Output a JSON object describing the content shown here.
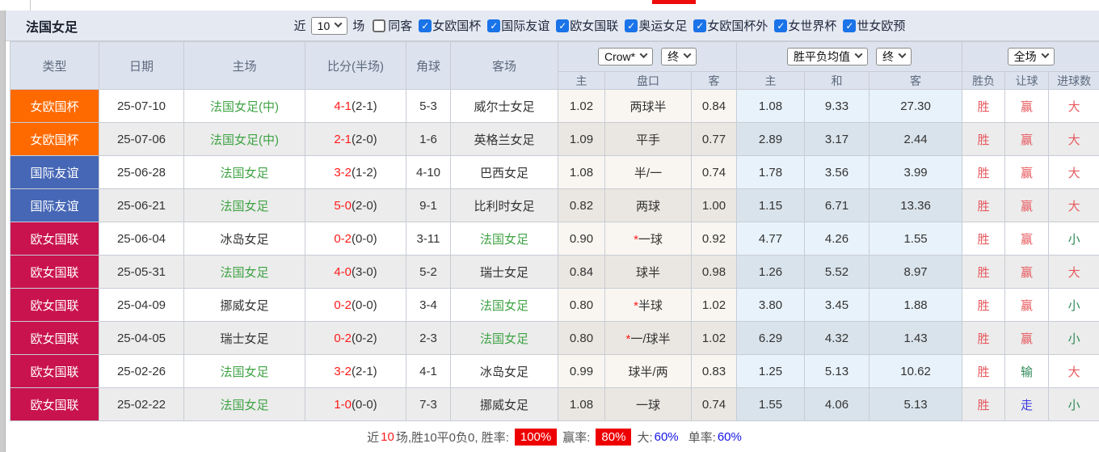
{
  "window": {
    "team_title": "法国女足"
  },
  "filters": {
    "recent_prefix": "近",
    "recent_value": "10",
    "recent_suffix": "场",
    "same_guest": {
      "label": "同客",
      "checked": false
    },
    "competitions": [
      {
        "label": "女欧国杯",
        "checked": true
      },
      {
        "label": "国际友谊",
        "checked": true
      },
      {
        "label": "欧女国联",
        "checked": true
      },
      {
        "label": "奥运女足",
        "checked": true
      },
      {
        "label": "女欧国杯外",
        "checked": true
      },
      {
        "label": "女世界杯",
        "checked": true
      },
      {
        "label": "世女欧预",
        "checked": true
      }
    ]
  },
  "table": {
    "static_headers": [
      "类型",
      "日期",
      "主场",
      "比分(半场)",
      "角球",
      "客场"
    ],
    "dropdowns": {
      "odds_company": "Crow*",
      "odds_stage_1": "终",
      "avg_type": "胜平负均值",
      "odds_stage_2": "终",
      "scope": "全场"
    },
    "sub_headers": [
      "主",
      "盘口",
      "客",
      "主",
      "和",
      "客",
      "胜负",
      "让球",
      "进球数"
    ],
    "rows": [
      {
        "type": "女欧国杯",
        "type_color": "orange",
        "date": "25-07-10",
        "home": "法国女足(中)",
        "home_color": "green",
        "score": "4-1",
        "half": "(2-1)",
        "corners": "5-3",
        "away": "威尔士女足",
        "away_color": "black",
        "odds_home": "1.02",
        "handicap": "两球半",
        "handicap_star": false,
        "odds_away": "0.84",
        "avg_home": "1.08",
        "avg_draw": "9.33",
        "avg_away": "27.30",
        "result": "胜",
        "result_color": "red",
        "handicap_result": "赢",
        "handicap_result_color": "red",
        "goals": "大",
        "goals_color": "red"
      },
      {
        "type": "女欧国杯",
        "type_color": "orange",
        "date": "25-07-06",
        "home": "法国女足(中)",
        "home_color": "green",
        "score": "2-1",
        "half": "(2-0)",
        "corners": "1-6",
        "away": "英格兰女足",
        "away_color": "black",
        "odds_home": "1.09",
        "handicap": "平手",
        "handicap_star": false,
        "odds_away": "0.77",
        "avg_home": "2.89",
        "avg_draw": "3.17",
        "avg_away": "2.44",
        "result": "胜",
        "result_color": "red",
        "handicap_result": "赢",
        "handicap_result_color": "red",
        "goals": "大",
        "goals_color": "red"
      },
      {
        "type": "国际友谊",
        "type_color": "blue",
        "date": "25-06-28",
        "home": "法国女足",
        "home_color": "green",
        "score": "3-2",
        "half": "(1-2)",
        "corners": "4-10",
        "away": "巴西女足",
        "away_color": "black",
        "odds_home": "1.08",
        "handicap": "半/一",
        "handicap_star": false,
        "odds_away": "0.74",
        "avg_home": "1.78",
        "avg_draw": "3.56",
        "avg_away": "3.99",
        "result": "胜",
        "result_color": "red",
        "handicap_result": "赢",
        "handicap_result_color": "red",
        "goals": "大",
        "goals_color": "red"
      },
      {
        "type": "国际友谊",
        "type_color": "blue",
        "date": "25-06-21",
        "home": "法国女足",
        "home_color": "green",
        "score": "5-0",
        "half": "(2-0)",
        "corners": "9-1",
        "away": "比利时女足",
        "away_color": "black",
        "odds_home": "0.82",
        "handicap": "两球",
        "handicap_star": false,
        "odds_away": "1.00",
        "avg_home": "1.15",
        "avg_draw": "6.71",
        "avg_away": "13.36",
        "result": "胜",
        "result_color": "red",
        "handicap_result": "赢",
        "handicap_result_color": "red",
        "goals": "大",
        "goals_color": "red"
      },
      {
        "type": "欧女国联",
        "type_color": "crimson",
        "date": "25-06-04",
        "home": "冰岛女足",
        "home_color": "black",
        "score": "0-2",
        "half": "(0-0)",
        "corners": "3-11",
        "away": "法国女足",
        "away_color": "green",
        "odds_home": "0.90",
        "handicap": "一球",
        "handicap_star": true,
        "odds_away": "0.92",
        "avg_home": "4.77",
        "avg_draw": "4.26",
        "avg_away": "1.55",
        "result": "胜",
        "result_color": "red",
        "handicap_result": "赢",
        "handicap_result_color": "red",
        "goals": "小",
        "goals_color": "green"
      },
      {
        "type": "欧女国联",
        "type_color": "crimson",
        "date": "25-05-31",
        "home": "法国女足",
        "home_color": "green",
        "score": "4-0",
        "half": "(3-0)",
        "corners": "5-2",
        "away": "瑞士女足",
        "away_color": "black",
        "odds_home": "0.84",
        "handicap": "球半",
        "handicap_star": false,
        "odds_away": "0.98",
        "avg_home": "1.26",
        "avg_draw": "5.52",
        "avg_away": "8.97",
        "result": "胜",
        "result_color": "red",
        "handicap_result": "赢",
        "handicap_result_color": "red",
        "goals": "大",
        "goals_color": "red"
      },
      {
        "type": "欧女国联",
        "type_color": "crimson",
        "date": "25-04-09",
        "home": "挪威女足",
        "home_color": "black",
        "score": "0-2",
        "half": "(0-0)",
        "corners": "3-4",
        "away": "法国女足",
        "away_color": "green",
        "odds_home": "0.80",
        "handicap": "半球",
        "handicap_star": true,
        "odds_away": "1.02",
        "avg_home": "3.80",
        "avg_draw": "3.45",
        "avg_away": "1.88",
        "result": "胜",
        "result_color": "red",
        "handicap_result": "赢",
        "handicap_result_color": "red",
        "goals": "小",
        "goals_color": "green"
      },
      {
        "type": "欧女国联",
        "type_color": "crimson",
        "date": "25-04-05",
        "home": "瑞士女足",
        "home_color": "black",
        "score": "0-2",
        "half": "(0-2)",
        "corners": "2-3",
        "away": "法国女足",
        "away_color": "green",
        "odds_home": "0.80",
        "handicap": "一/球半",
        "handicap_star": true,
        "odds_away": "1.02",
        "avg_home": "6.29",
        "avg_draw": "4.32",
        "avg_away": "1.43",
        "result": "胜",
        "result_color": "red",
        "handicap_result": "赢",
        "handicap_result_color": "red",
        "goals": "小",
        "goals_color": "green"
      },
      {
        "type": "欧女国联",
        "type_color": "crimson",
        "date": "25-02-26",
        "home": "法国女足",
        "home_color": "green",
        "score": "3-2",
        "half": "(2-1)",
        "corners": "4-1",
        "away": "冰岛女足",
        "away_color": "black",
        "odds_home": "0.99",
        "handicap": "球半/两",
        "handicap_star": false,
        "odds_away": "0.83",
        "avg_home": "1.25",
        "avg_draw": "5.13",
        "avg_away": "10.62",
        "result": "胜",
        "result_color": "red",
        "handicap_result": "输",
        "handicap_result_color": "green",
        "goals": "大",
        "goals_color": "red"
      },
      {
        "type": "欧女国联",
        "type_color": "crimson",
        "date": "25-02-22",
        "home": "法国女足",
        "home_color": "green",
        "score": "1-0",
        "half": "(0-0)",
        "corners": "7-3",
        "away": "挪威女足",
        "away_color": "black",
        "odds_home": "1.08",
        "handicap": "一球",
        "handicap_star": false,
        "odds_away": "0.74",
        "avg_home": "1.55",
        "avg_draw": "4.06",
        "avg_away": "5.13",
        "result": "胜",
        "result_color": "red",
        "handicap_result": "走",
        "handicap_result_color": "blue",
        "goals": "小",
        "goals_color": "green"
      }
    ]
  },
  "summary": {
    "text_prefix": "近",
    "recent_count": "10",
    "text_mid": "场,胜10平0负0, 胜率:",
    "win_rate": "100%",
    "handicap_label": "赢率:",
    "handicap_rate": "80%",
    "big_label": "大:",
    "big_rate": "60%",
    "single_label": "单率:",
    "single_rate": "60%"
  },
  "colors": {
    "badge_orange": "#ff6a00",
    "badge_blue": "#4667b5",
    "badge_crimson": "#c9134e",
    "team_green": "#3fa344",
    "score_red": "#ff1a1a",
    "result_red": "#e7595e",
    "result_green": "#2f8a57",
    "result_blue": "#3c3ce0",
    "rate_badge_bg": "#ee0000",
    "rate_blue": "#1414e6",
    "checkbox_blue": "#1a73e8",
    "top_indicator_red": "#ee0b0b"
  }
}
